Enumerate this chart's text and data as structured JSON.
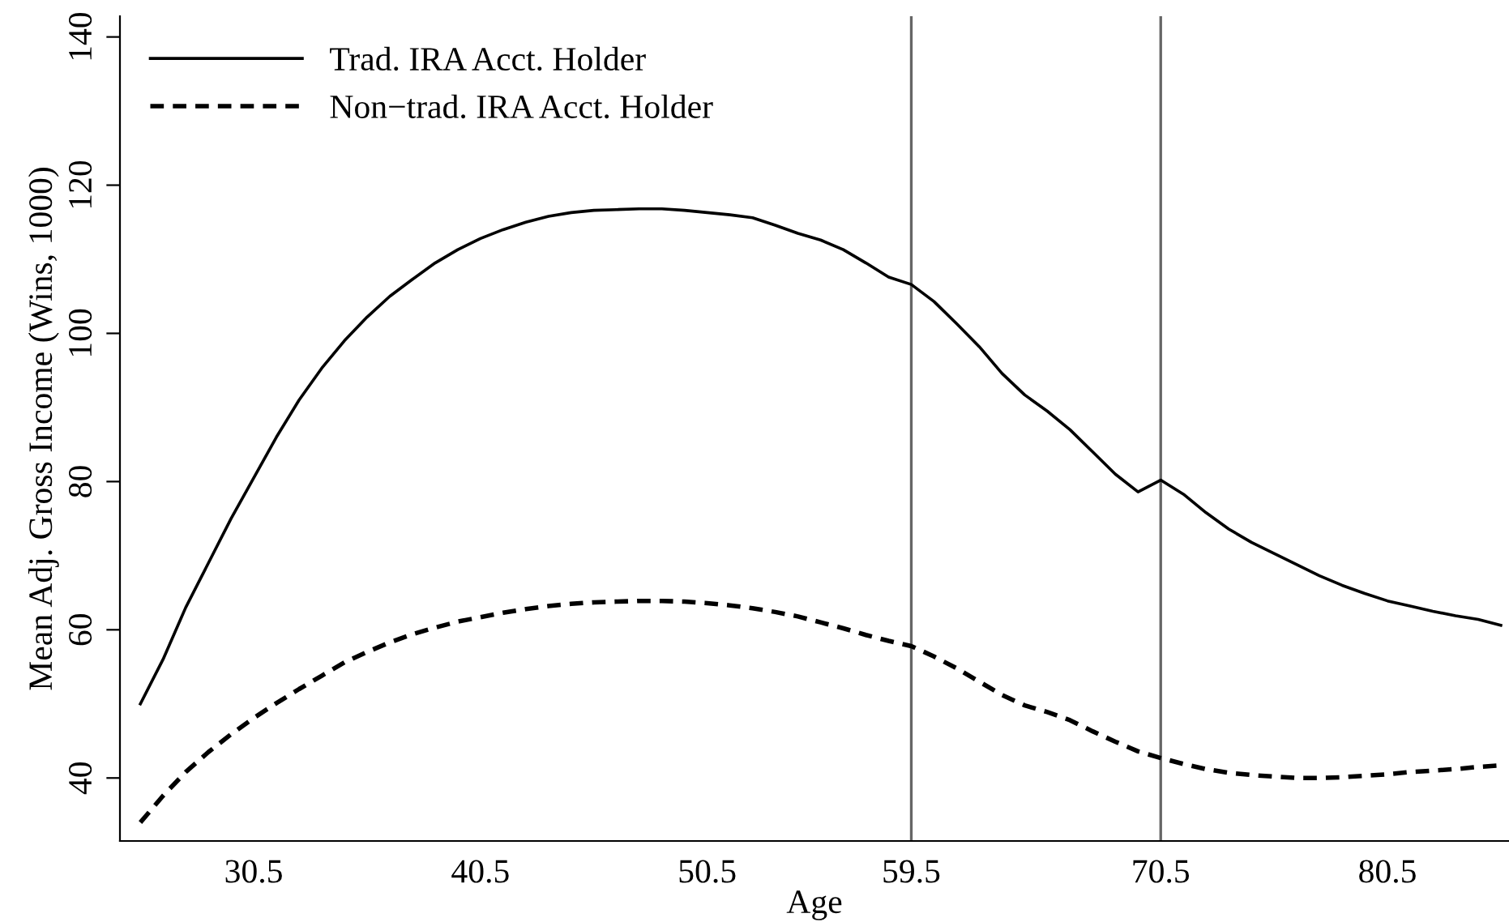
{
  "chart_data": {
    "type": "line",
    "xlabel": "Age",
    "ylabel": "Mean Adj. Gross Income (Wins, 1000)",
    "x": [
      25.5,
      26.5,
      27.5,
      28.5,
      29.5,
      30.5,
      31.5,
      32.5,
      33.5,
      34.5,
      35.5,
      36.5,
      37.5,
      38.5,
      39.5,
      40.5,
      41.5,
      42.5,
      43.5,
      44.5,
      45.5,
      46.5,
      47.5,
      48.5,
      49.5,
      50.5,
      51.5,
      52.5,
      53.5,
      54.5,
      55.5,
      56.5,
      57.5,
      58.5,
      59.5,
      60.5,
      61.5,
      62.5,
      63.5,
      64.5,
      65.5,
      66.5,
      67.5,
      68.5,
      69.5,
      70.5,
      71.5,
      72.5,
      73.5,
      74.5,
      75.5,
      76.5,
      77.5,
      78.5,
      79.5,
      80.5,
      81.5,
      82.5,
      83.5,
      84.5,
      85.5
    ],
    "series": [
      {
        "name": "Trad. IRA Acct. Holder",
        "color": "#000000",
        "line_style": "solid",
        "values": [
          50,
          56,
          63,
          69,
          75,
          80.5,
          86,
          91,
          95.3,
          99,
          102.2,
          105,
          107.3,
          109.5,
          111.3,
          112.8,
          114,
          115,
          115.8,
          116.3,
          116.6,
          116.7,
          116.8,
          116.8,
          116.6,
          116.3,
          116,
          115.6,
          114.6,
          113.5,
          112.6,
          111.3,
          109.5,
          107.6,
          106.6,
          104.3,
          101.3,
          98.2,
          94.6,
          91.7,
          89.5,
          87,
          84,
          81,
          78.6,
          80.2,
          78.3,
          75.8,
          73.6,
          71.8,
          70.3,
          68.8,
          67.3,
          66,
          64.9,
          63.9,
          63.2,
          62.5,
          61.9,
          61.4,
          60.6
        ]
      },
      {
        "name": "Non−trad. IRA Acct. Holder",
        "color": "#000000",
        "line_style": "dashed",
        "values": [
          34,
          37.6,
          40.8,
          43.5,
          45.9,
          48.1,
          50.1,
          52,
          53.8,
          55.6,
          57,
          58.3,
          59.4,
          60.3,
          61.1,
          61.7,
          62.3,
          62.8,
          63.2,
          63.5,
          63.7,
          63.8,
          63.9,
          63.9,
          63.8,
          63.6,
          63.3,
          62.9,
          62.4,
          61.8,
          61,
          60.2,
          59.3,
          58.5,
          57.8,
          56.4,
          54.8,
          53,
          51.2,
          49.8,
          48.9,
          47.8,
          46.3,
          44.9,
          43.6,
          42.7,
          41.9,
          41.2,
          40.7,
          40.4,
          40.2,
          40,
          40,
          40.1,
          40.3,
          40.5,
          40.8,
          41,
          41.2,
          41.5,
          41.7
        ]
      }
    ],
    "xlim": [
      24.6,
      85.86
    ],
    "ylim": [
      31.5,
      142.8
    ],
    "xticks": [
      30.5,
      40.5,
      50.5,
      59.5,
      70.5,
      80.5
    ],
    "yticks": [
      40,
      60,
      80,
      100,
      120,
      140
    ],
    "ref_lines": [
      {
        "axis": "x",
        "value": 59.5,
        "color": "#666666"
      },
      {
        "axis": "x",
        "value": 70.5,
        "color": "#666666"
      }
    ],
    "grid": false,
    "legend": "top left",
    "marker": "none"
  }
}
